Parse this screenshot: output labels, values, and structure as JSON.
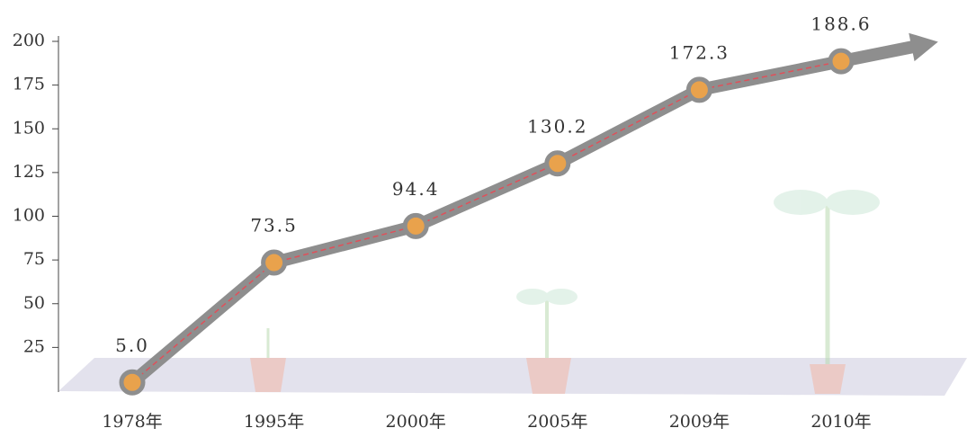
{
  "chart_data": {
    "type": "line",
    "categories": [
      "1978年",
      "1995年",
      "2000年",
      "2005年",
      "2009年",
      "2010年"
    ],
    "values": [
      5.0,
      73.5,
      94.4,
      130.2,
      172.3,
      188.6
    ],
    "value_labels": [
      "5.0",
      "73.5",
      "94.4",
      "130.2",
      "172.3",
      "188.6"
    ],
    "color": "#8e8e8e",
    "ylim": [
      0,
      200
    ],
    "yticks": [
      25,
      50,
      75,
      100,
      125,
      150,
      175,
      200
    ]
  }
}
